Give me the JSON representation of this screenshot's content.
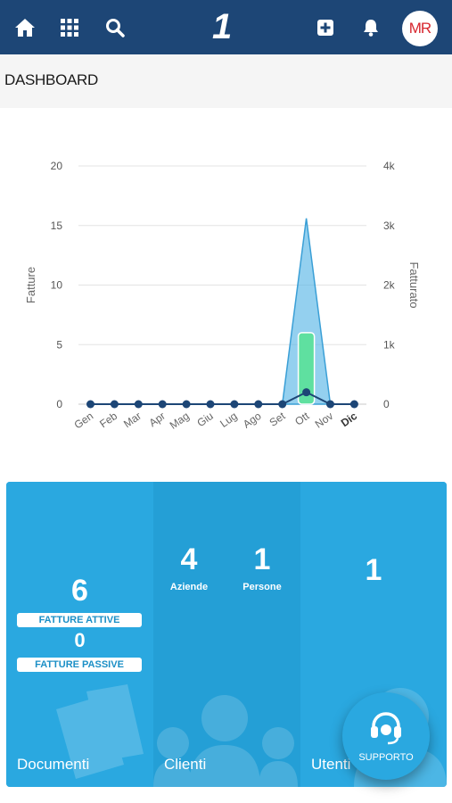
{
  "header": {
    "logo": "1",
    "avatar_initials": "MR",
    "icons": [
      "home-icon",
      "apps-grid-icon",
      "search-icon",
      "add-icon",
      "bell-icon"
    ]
  },
  "page": {
    "title": "DASHBOARD"
  },
  "chart_data": {
    "type": "line",
    "categories": [
      "Gen",
      "Feb",
      "Mar",
      "Apr",
      "Mag",
      "Giu",
      "Lug",
      "Ago",
      "Set",
      "Ott",
      "Nov",
      "Dic"
    ],
    "ylabel": "Fatture",
    "y2label": "Fatturato",
    "ylim": [
      0,
      20
    ],
    "y2lim": [
      0,
      4000
    ],
    "yticks": [
      "0",
      "5",
      "10",
      "15",
      "20"
    ],
    "y2ticks": [
      "0",
      "1k",
      "2k",
      "3k",
      "4k"
    ],
    "series": [
      {
        "axis": "left",
        "kind": "line",
        "values": [
          0,
          0,
          0,
          0,
          0,
          0,
          0,
          0,
          0,
          1,
          0,
          0
        ],
        "color": "#1d4676"
      },
      {
        "axis": "right",
        "kind": "area",
        "values": [
          0,
          0,
          0,
          0,
          0,
          0,
          0,
          0,
          0,
          3120,
          0,
          0
        ],
        "color": "#5bb7e6"
      },
      {
        "axis": "left",
        "kind": "bar",
        "values": [
          0,
          0,
          0,
          0,
          0,
          0,
          0,
          0,
          0,
          6,
          0,
          0
        ],
        "color": "#5fe0a0"
      }
    ]
  },
  "tiles": {
    "documenti": {
      "title": "Documenti",
      "attive_value": "6",
      "attive_label": "FATTURE ATTIVE",
      "passive_value": "0",
      "passive_label": "FATTURE PASSIVE"
    },
    "clienti": {
      "title": "Clienti",
      "aziende_value": "4",
      "aziende_label": "Aziende",
      "persone_value": "1",
      "persone_label": "Persone"
    },
    "utenti": {
      "title": "Utenti",
      "value": "1"
    }
  },
  "support": {
    "label": "SUPPORTO"
  }
}
